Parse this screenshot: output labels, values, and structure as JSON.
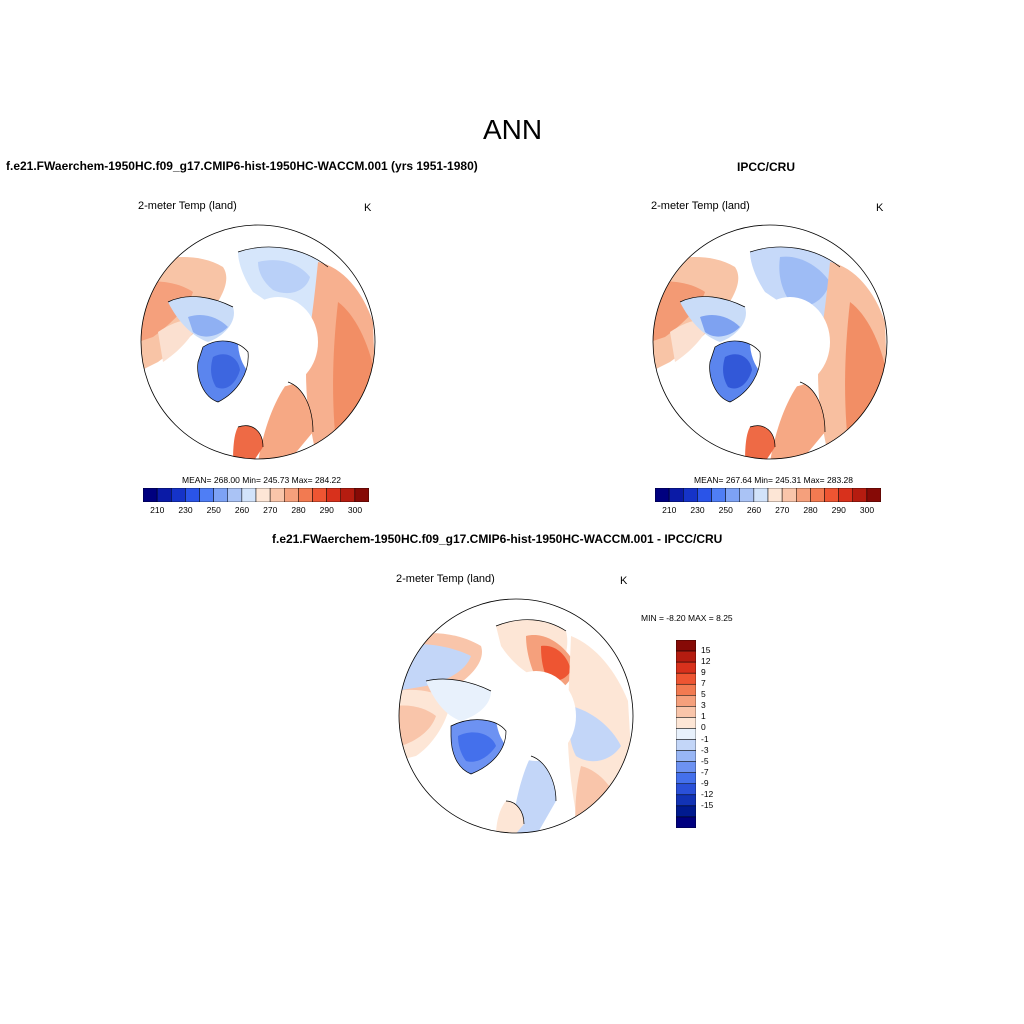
{
  "figure": {
    "title": "ANN"
  },
  "panels": [
    {
      "title": "f.e21.FWaerchem-1950HC.f09_g17.CMIP6-hist-1950HC-WACCM.001 (yrs 1951-1980)",
      "variable": "2-meter Temp (land)",
      "units": "K",
      "stats": "MEAN= 268.00  Min= 245.73  Max= 284.22",
      "colorbar": {
        "orientation": "horizontal",
        "colors": [
          "#00007f",
          "#0a1aa6",
          "#1533c8",
          "#2a54e8",
          "#4f7ef5",
          "#7da2f5",
          "#aac3f5",
          "#d2e3fa",
          "#fde6d6",
          "#f9c5aa",
          "#f5a07c",
          "#f27a51",
          "#ee5532",
          "#d8311c",
          "#b51c10",
          "#860a06"
        ],
        "tick_labels": [
          "210",
          "230",
          "250",
          "260",
          "270",
          "280",
          "290",
          "300"
        ]
      }
    },
    {
      "title": "IPCC/CRU",
      "variable": "2-meter Temp (land)",
      "units": "K",
      "stats": "MEAN= 267.64  Min= 245.31  Max= 283.28",
      "colorbar": {
        "orientation": "horizontal",
        "colors": [
          "#00007f",
          "#0a1aa6",
          "#1533c8",
          "#2a54e8",
          "#4f7ef5",
          "#7da2f5",
          "#aac3f5",
          "#d2e3fa",
          "#fde6d6",
          "#f9c5aa",
          "#f5a07c",
          "#f27a51",
          "#ee5532",
          "#d8311c",
          "#b51c10",
          "#860a06"
        ],
        "tick_labels": [
          "210",
          "230",
          "250",
          "260",
          "270",
          "280",
          "290",
          "300"
        ]
      }
    },
    {
      "title": "f.e21.FWaerchem-1950HC.f09_g17.CMIP6-hist-1950HC-WACCM.001 - IPCC/CRU",
      "variable": "2-meter Temp (land)",
      "units": "K",
      "stats": "MIN =  -8.20 MAX =   8.25",
      "colorbar": {
        "orientation": "vertical",
        "colors": [
          "#860a06",
          "#b51c10",
          "#d8311c",
          "#ee5532",
          "#f27a51",
          "#f5a07c",
          "#f9c5aa",
          "#fde6d6",
          "#e8f1fc",
          "#c3d6f8",
          "#98b6f5",
          "#6d92f2",
          "#4470ec",
          "#2a50d8",
          "#1233b5",
          "#001a8f",
          "#00007f"
        ],
        "tick_labels": [
          "15",
          "12",
          "9",
          "7",
          "5",
          "3",
          "1",
          "0",
          "-1",
          "-3",
          "-5",
          "-7",
          "-9",
          "-12",
          "-15"
        ]
      }
    }
  ]
}
